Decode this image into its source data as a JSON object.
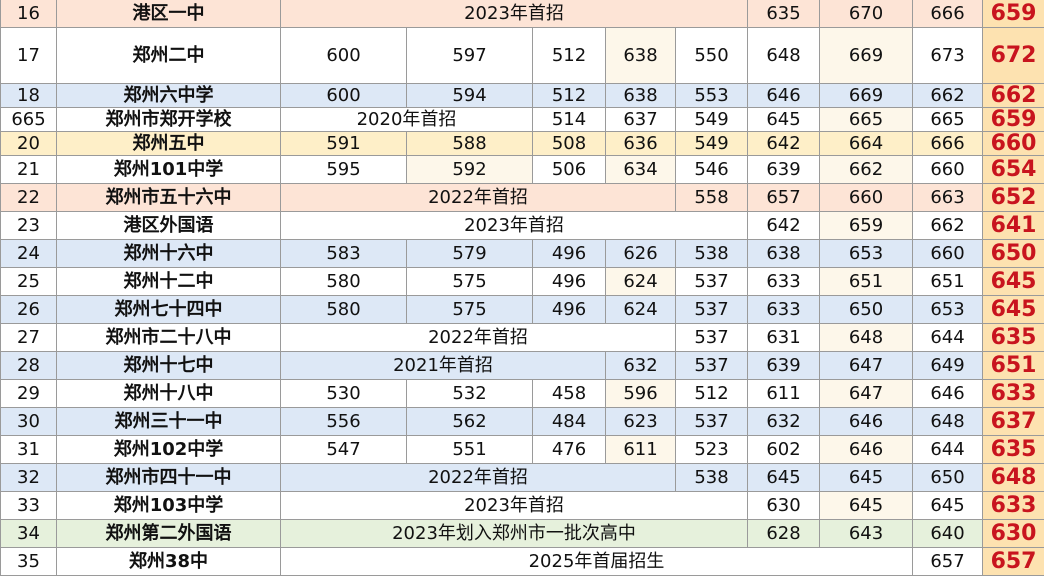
{
  "colors": {
    "peach": "#fde4d6",
    "blue": "#dde8f6",
    "yellow": "#feefc8",
    "green": "#e6f1dc",
    "cream": "#fdf6e6",
    "score_red": "#c8141e"
  },
  "rows": [
    {
      "idx": "16",
      "name": "港区一中",
      "note": "2023年首招",
      "note_span": 5,
      "cols": [
        "635",
        "670",
        "666"
      ],
      "score": "659",
      "bg": "peach"
    },
    {
      "idx": "17",
      "name": "郑州二中",
      "cells": [
        "600",
        "597",
        "512",
        "638",
        "550"
      ],
      "cols": [
        "648",
        "669",
        "673"
      ],
      "score": "672",
      "bg": "white"
    },
    {
      "idx": "18",
      "name": "郑州六中学",
      "cells": [
        "600",
        "594",
        "512",
        "638",
        "553"
      ],
      "cols": [
        "646",
        "669",
        "662"
      ],
      "score": "662",
      "bg": "blue"
    },
    {
      "idx": "665",
      "name": "郑州市郑开学校",
      "note": "2020年首招",
      "note_span": 2,
      "cells": [
        "514",
        "637",
        "549"
      ],
      "cols": [
        "645",
        "665",
        "665"
      ],
      "score": "659",
      "bg": "white"
    },
    {
      "idx": "20",
      "name": "郑州五中",
      "cells": [
        "591",
        "588",
        "508",
        "636",
        "549"
      ],
      "cols": [
        "642",
        "664",
        "666"
      ],
      "score": "660",
      "bg": "yellow"
    },
    {
      "idx": "21",
      "name": "郑州101中学",
      "cells": [
        "595",
        "592",
        "506",
        "634",
        "546"
      ],
      "cols": [
        "639",
        "662",
        "660"
      ],
      "score": "654",
      "bg": "white"
    },
    {
      "idx": "22",
      "name": "郑州市五十六中",
      "note": "2022年首招",
      "note_span": 4,
      "cells": [
        "558"
      ],
      "cols": [
        "657",
        "660",
        "663"
      ],
      "score": "652",
      "bg": "peach"
    },
    {
      "idx": "23",
      "name": "港区外国语",
      "note": "2023年首招",
      "note_span": 5,
      "cols": [
        "642",
        "659",
        "662"
      ],
      "score": "641",
      "bg": "white"
    },
    {
      "idx": "24",
      "name": "郑州十六中",
      "cells": [
        "583",
        "579",
        "496",
        "626",
        "538"
      ],
      "cols": [
        "638",
        "653",
        "660"
      ],
      "score": "650",
      "bg": "blue"
    },
    {
      "idx": "25",
      "name": "郑州十二中",
      "cells": [
        "580",
        "575",
        "496",
        "624",
        "537"
      ],
      "cols": [
        "633",
        "651",
        "651"
      ],
      "score": "645",
      "bg": "white"
    },
    {
      "idx": "26",
      "name": "郑州七十四中",
      "cells": [
        "580",
        "575",
        "496",
        "624",
        "537"
      ],
      "cols": [
        "633",
        "650",
        "653"
      ],
      "score": "645",
      "bg": "blue"
    },
    {
      "idx": "27",
      "name": "郑州市二十八中",
      "note": "2022年首招",
      "note_span": 4,
      "cells": [
        "537"
      ],
      "cols": [
        "631",
        "648",
        "644"
      ],
      "score": "635",
      "bg": "white"
    },
    {
      "idx": "28",
      "name": "郑州十七中",
      "note": "2021年首招",
      "note_span": 3,
      "cells": [
        "632",
        "537"
      ],
      "cols": [
        "639",
        "647",
        "649"
      ],
      "score": "651",
      "bg": "blue"
    },
    {
      "idx": "29",
      "name": "郑州十八中",
      "cells": [
        "530",
        "532",
        "458",
        "596",
        "512"
      ],
      "cols": [
        "611",
        "647",
        "646"
      ],
      "score": "633",
      "bg": "white"
    },
    {
      "idx": "30",
      "name": "郑州三十一中",
      "cells": [
        "556",
        "562",
        "484",
        "623",
        "537"
      ],
      "cols": [
        "632",
        "646",
        "648"
      ],
      "score": "637",
      "bg": "blue"
    },
    {
      "idx": "31",
      "name": "郑州102中学",
      "cells": [
        "547",
        "551",
        "476",
        "611",
        "523"
      ],
      "cols": [
        "602",
        "646",
        "644"
      ],
      "score": "635",
      "bg": "white"
    },
    {
      "idx": "32",
      "name": "郑州市四十一中",
      "note": "2022年首招",
      "note_span": 4,
      "cells": [
        "538"
      ],
      "cols": [
        "645",
        "645",
        "650"
      ],
      "score": "648",
      "bg": "blue"
    },
    {
      "idx": "33",
      "name": "郑州103中学",
      "note": "2023年首招",
      "note_span": 5,
      "cols": [
        "630",
        "645",
        "645"
      ],
      "score": "633",
      "bg": "white"
    },
    {
      "idx": "34",
      "name": "郑州第二外国语",
      "note": "2023年划入郑州市一批次高中",
      "note_span": 5,
      "cols": [
        "628",
        "643",
        "640"
      ],
      "score": "630",
      "bg": "green"
    },
    {
      "idx": "35",
      "name": "郑州38中",
      "note": "2025年首届招生",
      "note_span": 7,
      "cols": [
        "657"
      ],
      "score": "657",
      "bg": "white"
    }
  ]
}
